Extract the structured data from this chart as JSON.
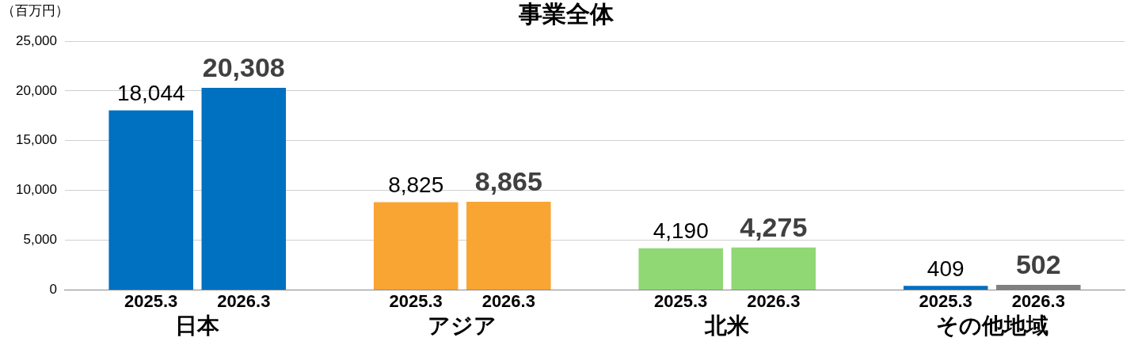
{
  "chart_data": {
    "type": "bar",
    "title": "事業全体",
    "ylabel": "（百万円）",
    "categories": [
      "日本",
      "アジア",
      "北米",
      "その他地域"
    ],
    "series": [
      {
        "name": "2025.3",
        "colors": [
          "#0070c0",
          "#f9a533",
          "#8fd873",
          "#0070c0"
        ],
        "values": [
          18044,
          8825,
          4190,
          409
        ],
        "value_labels": [
          "18,044",
          "8,825",
          "4,190",
          "409"
        ]
      },
      {
        "name": "2026.3",
        "colors": [
          "#0070c0",
          "#f9a533",
          "#8fd873",
          "#808080"
        ],
        "values": [
          20308,
          8865,
          4275,
          502
        ],
        "value_labels": [
          "20,308",
          "8,865",
          "4,275",
          "502"
        ]
      }
    ],
    "ylim": [
      0,
      25000
    ],
    "yticks": [
      {
        "value": 0,
        "label": "0"
      },
      {
        "value": 5000,
        "label": "5,000"
      },
      {
        "value": 10000,
        "label": "10,000"
      },
      {
        "value": 15000,
        "label": "15,000"
      },
      {
        "value": 20000,
        "label": "20,000"
      },
      {
        "value": 25000,
        "label": "25,000"
      }
    ],
    "grid": "y",
    "legend": false
  }
}
